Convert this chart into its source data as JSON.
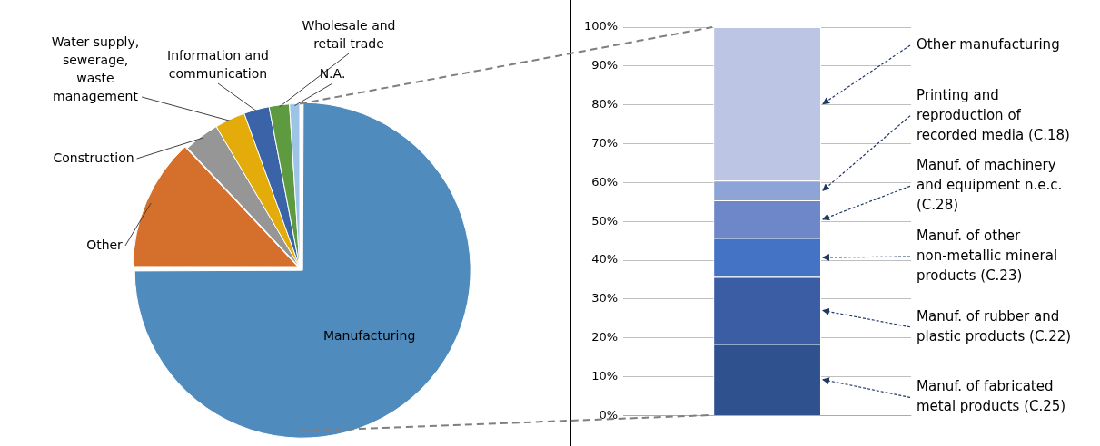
{
  "chart_data": [
    {
      "type": "pie",
      "categories": [
        "Manufacturing",
        "Other",
        "Construction",
        "Water supply, sewerage, waste management",
        "Information and communication",
        "Wholesale and retail trade",
        "N.A."
      ],
      "values": [
        75,
        13,
        3.5,
        3,
        2.5,
        2,
        1
      ],
      "colors": [
        "#4f8bbd",
        "#d4702b",
        "#969696",
        "#e3ac0b",
        "#3a63a8",
        "#5e9a40",
        "#9dc3e6"
      ]
    },
    {
      "type": "bar",
      "stacked": true,
      "categories": [
        null
      ],
      "series": [
        {
          "name": "Manuf. of fabricated metal products (C.25)",
          "color": "#2f528f",
          "values": [
            18.4
          ]
        },
        {
          "name": "Manuf. of rubber and plastic products (C.22)",
          "color": "#3a5da3",
          "values": [
            17.3
          ]
        },
        {
          "name": "Manuf. of other non-metallic mineral products (C.23)",
          "color": "#4472c4",
          "values": [
            10
          ]
        },
        {
          "name": "Manuf. of machinery and equipment n.e.c. (C.28)",
          "color": "#6d87c8",
          "values": [
            9.7
          ]
        },
        {
          "name": "Printing and reproduction of recorded media (C.18)",
          "color": "#8ea3d6",
          "values": [
            5.1
          ]
        },
        {
          "name": "Other manufacturing",
          "color": "#bcc6e4",
          "values": [
            39.5
          ]
        }
      ],
      "ylim": [
        0,
        100
      ],
      "yticks": [
        {
          "value": 0,
          "label": "0%"
        },
        {
          "value": 10,
          "label": "10%"
        },
        {
          "value": 20,
          "label": "20%"
        },
        {
          "value": 30,
          "label": "30%"
        },
        {
          "value": 40,
          "label": "40%"
        },
        {
          "value": 50,
          "label": "50%"
        },
        {
          "value": 60,
          "label": "60%"
        },
        {
          "value": 70,
          "label": "70%"
        },
        {
          "value": 80,
          "label": "80%"
        },
        {
          "value": 90,
          "label": "90%"
        },
        {
          "value": 100,
          "label": "100%"
        }
      ],
      "grid": "y"
    }
  ]
}
